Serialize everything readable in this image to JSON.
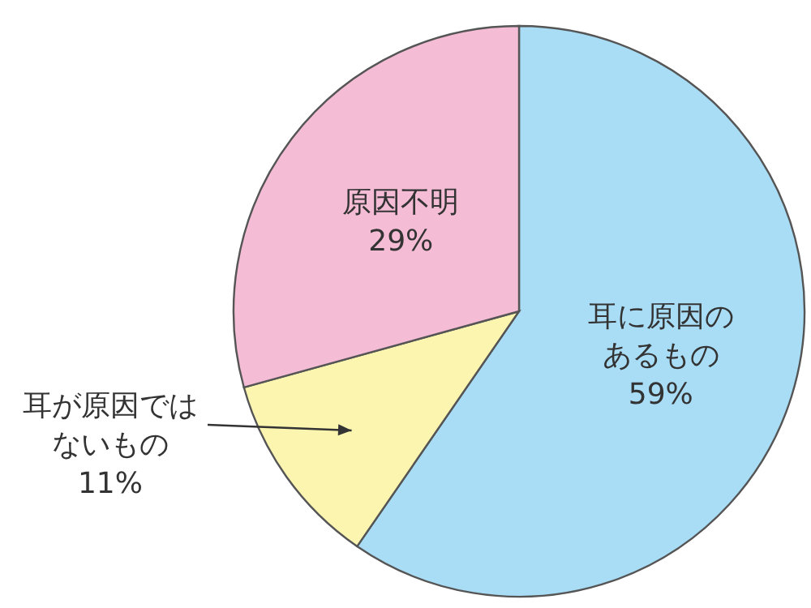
{
  "chart_data": {
    "type": "pie",
    "categories": [
      "耳に原因のあるもの",
      "耳が原因ではないもの",
      "原因不明"
    ],
    "values": [
      59,
      11,
      29
    ],
    "value_labels": [
      "59%",
      "11%",
      "29%"
    ],
    "colors": [
      "#a9dcf5",
      "#fbf5b0",
      "#f5bcd6"
    ],
    "legend": false
  }
}
